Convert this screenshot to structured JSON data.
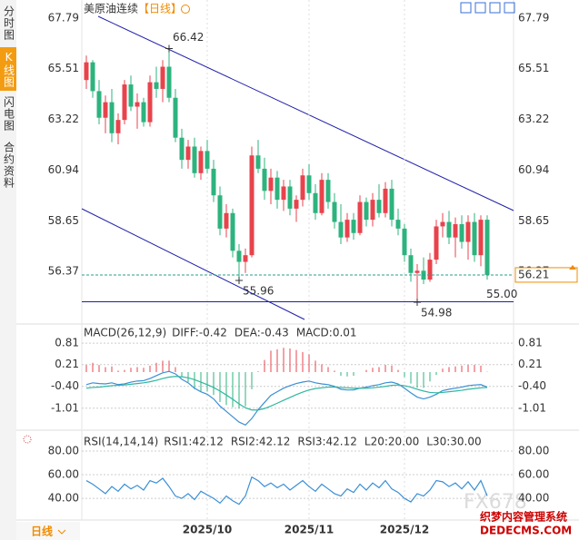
{
  "sidebar": [
    "分时图",
    "K线图",
    "闪电图",
    "合约资料"
  ],
  "period_tab": "日线",
  "watermark": [
    "FX678",
    "织梦内容管理系统",
    "DEDECMS.COM"
  ],
  "chart_data": [
    {
      "type": "candlestick",
      "title": "美原油连续",
      "period": "【日线】",
      "categories": [
        null,
        null,
        null,
        null,
        null,
        null,
        null,
        null,
        null,
        null,
        null,
        null,
        null,
        null,
        null,
        null,
        null,
        null,
        null,
        "2025/10",
        null,
        null,
        null,
        null,
        null,
        null,
        null,
        null,
        null,
        null,
        null,
        null,
        null,
        null,
        null,
        "2025/11",
        null,
        null,
        null,
        null,
        null,
        null,
        null,
        null,
        null,
        null,
        null,
        null,
        null,
        null,
        "2025/12",
        null,
        null,
        null,
        null,
        null,
        null,
        null,
        null,
        null,
        null,
        null,
        null,
        null
      ],
      "candles": [
        [
          65.0,
          66.1,
          64.6,
          65.8
        ],
        [
          65.8,
          65.9,
          64.2,
          64.5
        ],
        [
          64.5,
          65.0,
          63.0,
          63.3
        ],
        [
          63.3,
          64.3,
          62.6,
          64.0
        ],
        [
          64.0,
          64.6,
          62.2,
          62.6
        ],
        [
          62.6,
          63.5,
          62.1,
          63.2
        ],
        [
          63.2,
          65.0,
          63.0,
          64.8
        ],
        [
          64.8,
          65.2,
          63.6,
          63.8
        ],
        [
          63.8,
          64.4,
          62.8,
          64.0
        ],
        [
          64.0,
          64.2,
          62.9,
          63.1
        ],
        [
          63.1,
          65.2,
          62.9,
          64.9
        ],
        [
          64.9,
          65.6,
          64.2,
          64.6
        ],
        [
          64.6,
          65.9,
          64.0,
          65.6
        ],
        [
          65.6,
          66.42,
          64.0,
          64.2
        ],
        [
          64.2,
          64.6,
          62.2,
          62.4
        ],
        [
          62.4,
          62.8,
          61.0,
          61.4
        ],
        [
          61.4,
          62.3,
          61.0,
          62.0
        ],
        [
          62.0,
          62.4,
          60.6,
          60.8
        ],
        [
          60.8,
          62.0,
          60.5,
          61.8
        ],
        [
          61.8,
          62.3,
          60.8,
          61.0
        ],
        [
          61.0,
          61.4,
          59.5,
          59.8
        ],
        [
          59.8,
          60.2,
          58.0,
          58.3
        ],
        [
          58.3,
          59.4,
          57.9,
          59.0
        ],
        [
          59.0,
          59.2,
          57.0,
          57.3
        ],
        [
          57.3,
          57.6,
          55.96,
          56.8
        ],
        [
          56.8,
          57.4,
          56.3,
          57.1
        ],
        [
          57.1,
          62.0,
          57.0,
          61.6
        ],
        [
          61.6,
          62.3,
          60.8,
          61.0
        ],
        [
          61.0,
          61.5,
          59.6,
          60.0
        ],
        [
          60.0,
          61.0,
          59.4,
          60.6
        ],
        [
          60.6,
          60.9,
          59.2,
          59.6
        ],
        [
          59.6,
          60.5,
          59.1,
          60.2
        ],
        [
          60.2,
          60.5,
          58.9,
          59.2
        ],
        [
          59.2,
          59.8,
          58.6,
          59.6
        ],
        [
          59.6,
          61.0,
          59.3,
          60.7
        ],
        [
          60.7,
          61.2,
          59.6,
          59.9
        ],
        [
          59.9,
          60.3,
          58.7,
          59.0
        ],
        [
          59.0,
          60.8,
          58.9,
          60.5
        ],
        [
          60.5,
          60.8,
          59.2,
          59.5
        ],
        [
          59.5,
          59.9,
          58.3,
          58.6
        ],
        [
          58.6,
          59.4,
          57.6,
          57.9
        ],
        [
          57.9,
          59.0,
          57.7,
          58.7
        ],
        [
          58.7,
          59.0,
          57.8,
          58.1
        ],
        [
          58.1,
          59.8,
          58.0,
          59.5
        ],
        [
          59.5,
          59.7,
          58.4,
          58.7
        ],
        [
          58.7,
          59.9,
          58.4,
          59.6
        ],
        [
          59.6,
          60.3,
          58.8,
          59.0
        ],
        [
          59.0,
          60.4,
          58.8,
          60.1
        ],
        [
          60.1,
          60.5,
          58.4,
          58.7
        ],
        [
          58.7,
          59.2,
          58.0,
          58.3
        ],
        [
          58.3,
          58.5,
          56.8,
          57.1
        ],
        [
          57.1,
          57.4,
          55.9,
          56.3
        ],
        [
          56.3,
          56.7,
          54.98,
          56.4
        ],
        [
          56.4,
          57.0,
          55.8,
          56.0
        ],
        [
          56.0,
          57.2,
          55.9,
          56.9
        ],
        [
          56.9,
          58.7,
          56.7,
          58.4
        ],
        [
          58.4,
          59.0,
          57.9,
          58.6
        ],
        [
          58.6,
          59.1,
          57.6,
          57.9
        ],
        [
          57.9,
          58.8,
          57.0,
          58.5
        ],
        [
          58.5,
          58.9,
          57.4,
          57.7
        ],
        [
          57.7,
          58.9,
          56.9,
          58.6
        ],
        [
          58.6,
          59.0,
          56.8,
          57.1
        ],
        [
          57.1,
          58.9,
          56.6,
          58.7
        ],
        [
          58.7,
          58.9,
          56.0,
          56.21
        ]
      ],
      "up_color": "#e8434c",
      "down_color": "#2db37e",
      "ylim": [
        54.1,
        68.2
      ],
      "yticks": [
        67.79,
        65.51,
        63.22,
        60.94,
        58.65,
        56.37
      ],
      "annotations": [
        66.42,
        55.96,
        54.98
      ],
      "hline": {
        "value": 55,
        "label": "55.00",
        "color": "#1f1fa8"
      },
      "last_price": 56.21,
      "last_color": "#f08c00"
    },
    {
      "type": "macd",
      "title": "MACD(26,12,9)",
      "stats": [
        {
          "label": "DIFF:-0.42",
          "color": "#3a8fd6"
        },
        {
          "label": "DEA:-0.43",
          "color": "#2fb7a0"
        },
        {
          "label": "MACD:0.01",
          "color": "#c9407a"
        }
      ],
      "series": [
        {
          "color": "#3a8fd6",
          "values": [
            -0.35,
            -0.3,
            -0.32,
            -0.33,
            -0.3,
            -0.35,
            -0.33,
            -0.28,
            -0.25,
            -0.24,
            -0.18,
            -0.1,
            -0.02,
            0.02,
            -0.05,
            -0.2,
            -0.3,
            -0.45,
            -0.55,
            -0.62,
            -0.75,
            -0.95,
            -1.1,
            -1.25,
            -1.4,
            -1.48,
            -1.3,
            -1.05,
            -0.85,
            -0.65,
            -0.55,
            -0.45,
            -0.38,
            -0.32,
            -0.28,
            -0.25,
            -0.3,
            -0.33,
            -0.35,
            -0.4,
            -0.48,
            -0.5,
            -0.5,
            -0.45,
            -0.42,
            -0.38,
            -0.35,
            -0.3,
            -0.28,
            -0.33,
            -0.45,
            -0.58,
            -0.7,
            -0.75,
            -0.7,
            -0.62,
            -0.52,
            -0.48,
            -0.45,
            -0.42,
            -0.38,
            -0.36,
            -0.35,
            -0.42
          ]
        },
        {
          "color": "#2fb7a0",
          "values": [
            -0.45,
            -0.43,
            -0.42,
            -0.4,
            -0.38,
            -0.37,
            -0.36,
            -0.34,
            -0.32,
            -0.3,
            -0.27,
            -0.23,
            -0.18,
            -0.14,
            -0.12,
            -0.13,
            -0.16,
            -0.21,
            -0.28,
            -0.35,
            -0.43,
            -0.53,
            -0.64,
            -0.76,
            -0.89,
            -1.0,
            -1.06,
            -1.06,
            -1.02,
            -0.95,
            -0.87,
            -0.79,
            -0.71,
            -0.63,
            -0.56,
            -0.5,
            -0.46,
            -0.44,
            -0.42,
            -0.42,
            -0.43,
            -0.44,
            -0.45,
            -0.45,
            -0.45,
            -0.44,
            -0.42,
            -0.4,
            -0.37,
            -0.36,
            -0.38,
            -0.42,
            -0.48,
            -0.53,
            -0.57,
            -0.58,
            -0.57,
            -0.55,
            -0.53,
            -0.51,
            -0.48,
            -0.46,
            -0.44,
            -0.43
          ]
        }
      ],
      "histogram": {
        "up_color": "#e8434c",
        "down_color": "#2db37e",
        "values": [
          0.2,
          0.26,
          0.2,
          0.14,
          0.16,
          0.04,
          0.06,
          0.12,
          0.14,
          0.12,
          0.18,
          0.26,
          0.32,
          0.32,
          0.14,
          -0.14,
          -0.28,
          -0.48,
          -0.54,
          -0.54,
          -0.64,
          -0.84,
          -0.92,
          -0.98,
          -1.02,
          -0.96,
          -0.48,
          0.02,
          0.34,
          0.6,
          0.64,
          0.68,
          0.66,
          0.62,
          0.56,
          0.5,
          0.32,
          0.22,
          0.14,
          0.04,
          -0.1,
          -0.12,
          -0.1,
          0.0,
          0.06,
          0.12,
          0.14,
          0.2,
          0.18,
          0.06,
          -0.14,
          -0.32,
          -0.44,
          -0.44,
          -0.26,
          -0.08,
          0.1,
          0.14,
          0.16,
          0.18,
          0.2,
          0.2,
          0.18,
          0.01
        ]
      },
      "ylim": [
        -1.55,
        1.22
      ],
      "yticks": [
        0.81,
        0.21,
        {
          "value": -0.4,
          "label": "-0.40"
        },
        -1.01
      ]
    },
    {
      "type": "line",
      "title": "RSI(14,14,14)",
      "stats": [
        {
          "label": "RSI1:42.12",
          "color": "#3a8fd6"
        },
        {
          "label": "RSI2:42.12",
          "color": "#2fb7a0"
        },
        {
          "label": "RSI3:42.12",
          "color": "#3a8fd6"
        },
        {
          "label": "L20:20.00",
          "color": "#bbbbbb"
        },
        {
          "label": "L30:30.00",
          "color": "#bbbbbb"
        }
      ],
      "series": [
        {
          "color": "#3a8fd6",
          "values": [
            55,
            52,
            48,
            44,
            50,
            46,
            52,
            48,
            51,
            47,
            55,
            53,
            57,
            50,
            42,
            40,
            44,
            39,
            46,
            43,
            40,
            36,
            42,
            38,
            35,
            42,
            58,
            55,
            50,
            53,
            49,
            52,
            47,
            51,
            55,
            50,
            46,
            52,
            48,
            44,
            42,
            48,
            45,
            52,
            47,
            53,
            49,
            55,
            48,
            45,
            40,
            37,
            44,
            42,
            47,
            55,
            54,
            50,
            53,
            48,
            54,
            47,
            55,
            42.12
          ]
        }
      ],
      "ylim": [
        24,
        93
      ],
      "yticks": [
        {
          "value": 80,
          "label": "80.00"
        },
        {
          "value": 60,
          "label": "60.00"
        },
        {
          "value": 40,
          "label": "40.00"
        }
      ]
    }
  ]
}
